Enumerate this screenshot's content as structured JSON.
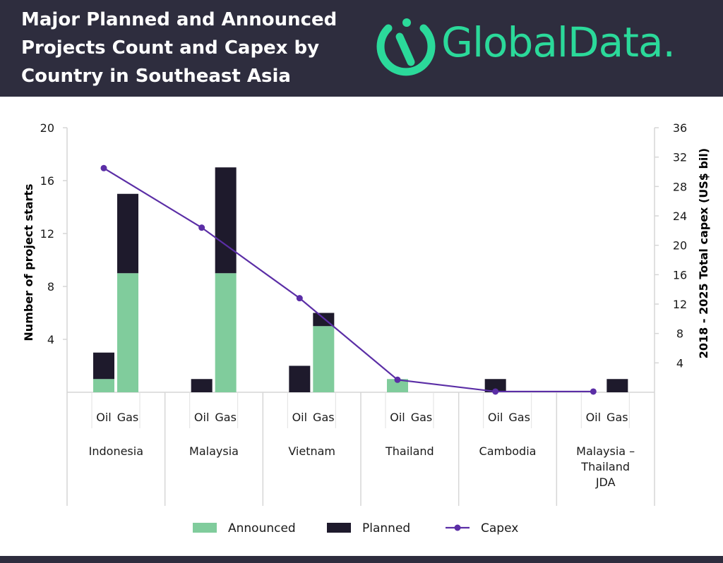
{
  "header": {
    "title_lines": [
      "Major Planned and Announced",
      "Projects Count and Capex by",
      "Country in Southeast Asia"
    ],
    "logo_text": "GlobalData.",
    "logo_icon": "globaldata-logo-icon"
  },
  "colors": {
    "header_bg": "#2e2d3e",
    "announced": "#80cc9c",
    "planned": "#1e1a2c",
    "capex": "#5b2ea6",
    "logo": "#2bd99a"
  },
  "chart_data": {
    "type": "bar",
    "subtype": "stacked bar with line on secondary axis",
    "title": "Major Planned and Announced Projects Count and Capex by Country in Southeast Asia",
    "ylabel": "Number of project starts",
    "y2label": "2018 - 2025 Total capex (US$ bil)",
    "ylim": [
      0,
      20
    ],
    "y2lim": [
      0,
      36
    ],
    "yticks": [
      "4",
      "8",
      "12",
      "16",
      "20"
    ],
    "y2ticks": [
      "4",
      "8",
      "12",
      "16",
      "20",
      "24",
      "28",
      "32",
      "36"
    ],
    "groups": [
      {
        "label": [
          "Indonesia"
        ],
        "capex": 30.5
      },
      {
        "label": [
          "Malaysia"
        ],
        "capex": 22.4
      },
      {
        "label": [
          "Vietnam"
        ],
        "capex": 12.8
      },
      {
        "label": [
          "Thailand"
        ],
        "capex": 1.7
      },
      {
        "label": [
          "Cambodia"
        ],
        "capex": 0.1
      },
      {
        "label": [
          "Malaysia –",
          "Thailand",
          "JDA"
        ],
        "capex": 0.1
      }
    ],
    "subcategories": [
      "Oil",
      "Gas"
    ],
    "series": [
      {
        "name": "Announced",
        "values": [
          [
            1,
            9
          ],
          [
            0,
            9
          ],
          [
            0,
            5
          ],
          [
            1,
            0
          ],
          [
            0,
            0
          ],
          [
            0,
            0
          ]
        ]
      },
      {
        "name": "Planned",
        "values": [
          [
            2,
            6
          ],
          [
            1,
            8
          ],
          [
            2,
            1
          ],
          [
            0,
            0
          ],
          [
            1,
            0
          ],
          [
            0,
            1
          ]
        ]
      },
      {
        "name": "Capex",
        "values": [
          30.5,
          22.4,
          12.8,
          1.7,
          0.1,
          0.1
        ]
      }
    ],
    "legend": {
      "position": "bottom",
      "items": [
        "Announced",
        "Planned",
        "Capex"
      ]
    },
    "grid": false
  }
}
